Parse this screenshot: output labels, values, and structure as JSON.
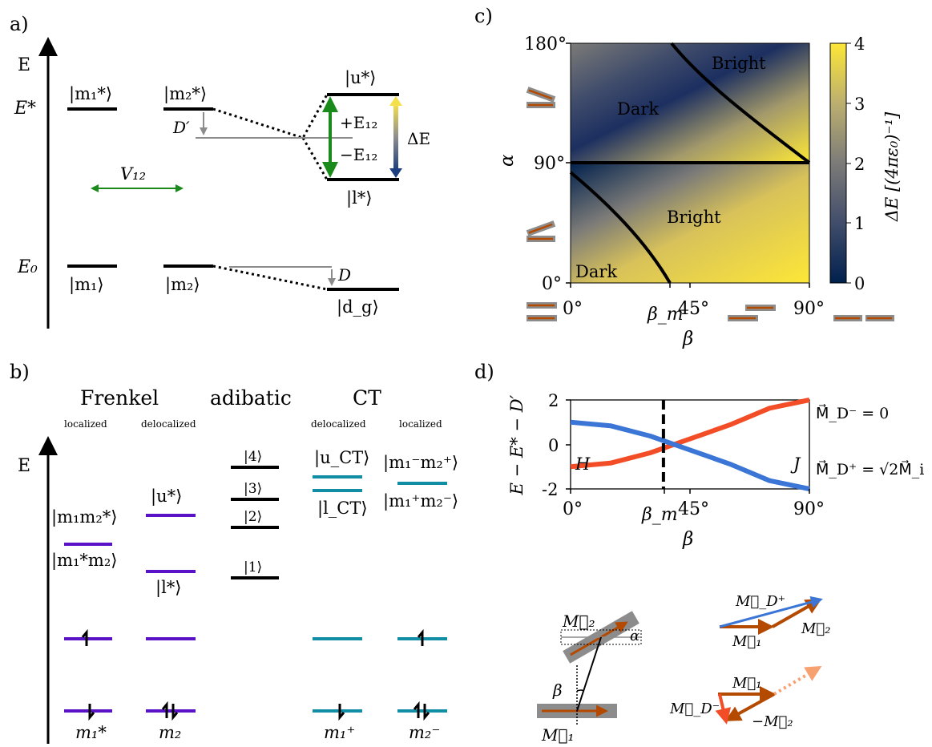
{
  "panels": {
    "a": {
      "label": "a)",
      "e_axis": "E",
      "e_star": "E*",
      "e_zero": "E₀",
      "m1_star": "|m₁*⟩",
      "m2_star": "|m₂*⟩",
      "u_star": "|u*⟩",
      "l_star": "|l*⟩",
      "m1": "|m₁⟩",
      "m2": "|m₂⟩",
      "dg": "|d_g⟩",
      "d_prime": "D′",
      "d": "D",
      "plus_e12": "+E₁₂",
      "minus_e12": "−E₁₂",
      "delta_e": "ΔE",
      "v12": "V₁₂"
    },
    "b": {
      "label": "b)",
      "e_axis": "E",
      "frenkel": "Frenkel",
      "adibatic": "adibatic",
      "ct": "CT",
      "localized_1": "localized",
      "delocalized_1": "delocalized",
      "delocalized_2": "delocalized",
      "localized_2": "localized",
      "m1m2star": "|m₁m₂*⟩",
      "m1starm2": "|m₁*m₂⟩",
      "u_star": "|u*⟩",
      "l_star": "|l*⟩",
      "k4": "|4⟩",
      "k3": "|3⟩",
      "k2": "|2⟩",
      "k1": "|1⟩",
      "u_ct": "|u_CT⟩",
      "l_ct": "|l_CT⟩",
      "m1m_m2p": "|m₁⁻m₂⁺⟩",
      "m1p_m2m": "|m₁⁺m₂⁻⟩",
      "mo_m1star": "m₁*",
      "mo_m2": "m₂",
      "mo_m1plus": "m₁⁺",
      "mo_m2minus": "m₂⁻"
    },
    "c": {
      "label": "c)",
      "ylabel": "α",
      "xlabel": "β",
      "y_ticks": [
        "180°",
        "90°",
        "0°"
      ],
      "x_ticks": [
        "0°",
        "45°",
        "90°"
      ],
      "beta_m": "β_m",
      "regions": [
        "Bright",
        "Dark",
        "Bright",
        "Dark"
      ],
      "colorbar_label": "ΔE [(4πε₀)⁻¹]",
      "colorbar_ticks": [
        "4",
        "3",
        "2",
        "1",
        "0"
      ]
    },
    "d": {
      "label": "d)",
      "ylabel": "E − E* − D′",
      "xlabel": "β",
      "y_ticks": [
        "2",
        "0",
        "-2"
      ],
      "x_ticks": [
        "0°",
        "45°",
        "90°"
      ],
      "beta_m": "β_m",
      "h_label": "H",
      "j_label": "J",
      "minus_label": "M⃗_D⁻ = 0",
      "plus_label": "M⃗_D⁺ = √2M⃗_i",
      "schematic": {
        "m1": "M⃗₁",
        "m2": "M⃗₂",
        "alpha": "α",
        "beta": "β",
        "md_plus": "M⃗_D⁺",
        "md_minus": "M⃗_D⁻",
        "minus_m2": "−M⃗₂"
      }
    }
  },
  "chart_data": {
    "type": "line",
    "x": [
      0,
      15,
      30,
      45,
      60,
      75,
      90
    ],
    "xlim": [
      0,
      90
    ],
    "ylim": [
      -2,
      2
    ],
    "series": [
      {
        "name": "M⃗_D⁻ = 0",
        "color": "#f24d26",
        "values": [
          -1.0,
          -0.84,
          -0.38,
          0.25,
          0.88,
          1.63,
          2.0
        ]
      },
      {
        "name": "M⃗_D⁺ = √2M⃗_i",
        "color": "#3b76d6",
        "values": [
          1.0,
          0.84,
          0.38,
          -0.25,
          -0.88,
          -1.63,
          -2.0
        ]
      }
    ],
    "vline": 35
  },
  "colors": {
    "green": "#1a8a1a",
    "gray": "#8c8c8c",
    "frenkel": "#5a12c6",
    "ct": "#118ea6",
    "orange": "#b34a00",
    "red": "#f24d26",
    "blue": "#3b76d6"
  }
}
